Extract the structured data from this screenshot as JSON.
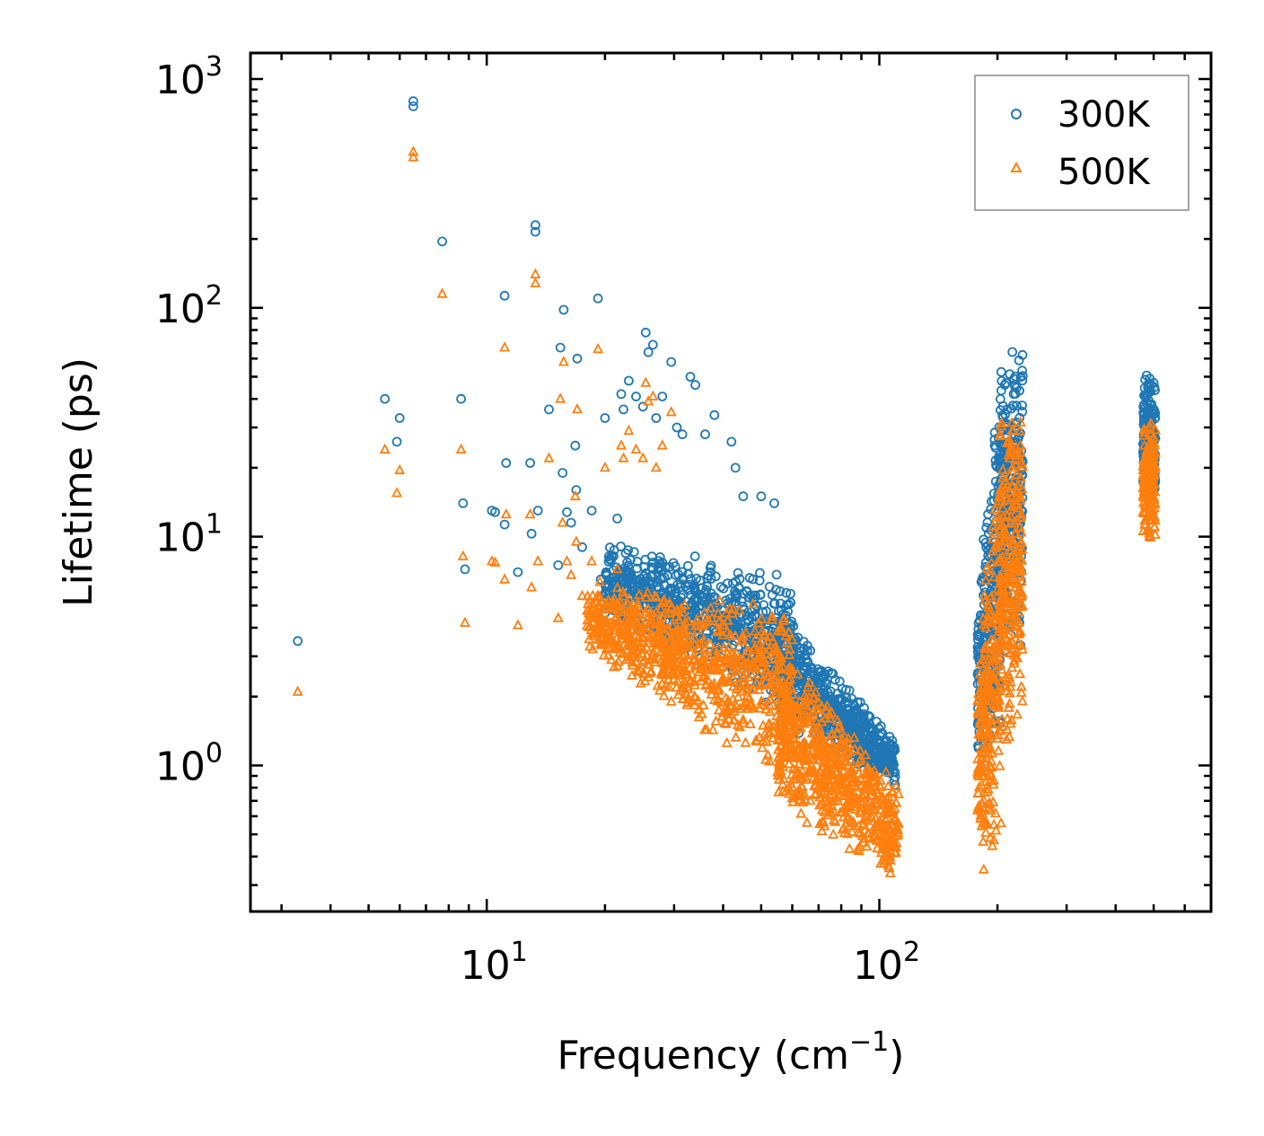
{
  "chart_data": {
    "type": "scatter",
    "xscale": "log",
    "yscale": "log",
    "xlabel": "Frequency (cm",
    "xlabel_sup": "−1",
    "xlabel_end": ")",
    "ylabel": "Lifetime (ps)",
    "xlim": [
      2.5,
      700
    ],
    "ylim": [
      0.23,
      1300
    ],
    "x_ticks": [
      {
        "value": 10,
        "base": "10",
        "exp": "1"
      },
      {
        "value": 100,
        "base": "10",
        "exp": "2"
      }
    ],
    "y_ticks": [
      {
        "value": 1,
        "base": "10",
        "exp": "0"
      },
      {
        "value": 10,
        "base": "10",
        "exp": "1"
      },
      {
        "value": 100,
        "base": "10",
        "exp": "2"
      },
      {
        "value": 1000,
        "base": "10",
        "exp": "3"
      }
    ],
    "legend_position": "top-right",
    "series": [
      {
        "name": "300K",
        "color": "#1f77b4",
        "marker": "circle",
        "points": [
          [
            3.3,
            3.5
          ],
          [
            5.5,
            40
          ],
          [
            5.9,
            26
          ],
          [
            6.0,
            33
          ],
          [
            6.5,
            800
          ],
          [
            6.5,
            760
          ],
          [
            7.7,
            195
          ],
          [
            8.6,
            40
          ],
          [
            8.7,
            14
          ],
          [
            8.8,
            7.2
          ],
          [
            10.3,
            13
          ],
          [
            10.5,
            12.8
          ],
          [
            11.1,
            113
          ],
          [
            11.2,
            21
          ],
          [
            11.1,
            11.3
          ],
          [
            12.0,
            7.0
          ],
          [
            12.9,
            21
          ],
          [
            13.3,
            230
          ],
          [
            13.3,
            215
          ],
          [
            13.5,
            13
          ],
          [
            13.0,
            10.3
          ],
          [
            14.4,
            36
          ],
          [
            15.2,
            7.5
          ],
          [
            15.4,
            67
          ],
          [
            15.6,
            19
          ],
          [
            15.7,
            98
          ],
          [
            16.0,
            12.8
          ],
          [
            16.4,
            11.5
          ],
          [
            16.8,
            25
          ],
          [
            16.9,
            16
          ],
          [
            17.0,
            60
          ],
          [
            17.5,
            9.0
          ],
          [
            18.5,
            13
          ],
          [
            19.2,
            110
          ],
          [
            19.5,
            6.5
          ],
          [
            20.0,
            33
          ],
          [
            21.5,
            12
          ],
          [
            22.0,
            42
          ],
          [
            22.3,
            36
          ],
          [
            23.0,
            48
          ],
          [
            24.0,
            41
          ],
          [
            25.0,
            37
          ],
          [
            25.4,
            78
          ],
          [
            25.8,
            64
          ],
          [
            26.5,
            69
          ],
          [
            27.0,
            33
          ],
          [
            28.0,
            41
          ],
          [
            29.5,
            58
          ],
          [
            30.5,
            30
          ],
          [
            31.5,
            28
          ],
          [
            33.0,
            50
          ],
          [
            34.0,
            46
          ],
          [
            36.0,
            28
          ],
          [
            38.0,
            34
          ],
          [
            42.0,
            26
          ],
          [
            43.0,
            20
          ],
          [
            45.0,
            15
          ],
          [
            50.0,
            15
          ],
          [
            54.0,
            14
          ]
        ],
        "clusters": [
          {
            "x": [
              20,
              60
            ],
            "y_low": [
              4.5,
              1.5
            ],
            "y_high": [
              10,
              7
            ],
            "n": 700
          },
          {
            "x": [
              55,
              110
            ],
            "y_low": [
              1.5,
              0.8
            ],
            "y_high": [
              5,
              1.3
            ],
            "n": 600
          },
          {
            "x": [
              178,
              205
            ],
            "y_low": [
              1.0,
              1.0
            ],
            "y_high": [
              6,
              85
            ],
            "n": 260
          },
          {
            "x": [
              202,
              232
            ],
            "y_low": [
              2,
              3
            ],
            "y_high": [
              60,
              95
            ],
            "n": 260
          },
          {
            "x": [
              470,
              505
            ],
            "y_low": [
              14,
              14
            ],
            "y_high": [
              52,
              52
            ],
            "n": 180
          }
        ]
      },
      {
        "name": "500K",
        "color": "#ff7f0e",
        "marker": "triangle",
        "points": [
          [
            3.3,
            2.1
          ],
          [
            5.5,
            24
          ],
          [
            5.9,
            15.5
          ],
          [
            6.0,
            19.5
          ],
          [
            6.5,
            480
          ],
          [
            6.5,
            455
          ],
          [
            7.7,
            115
          ],
          [
            8.6,
            24
          ],
          [
            8.7,
            8.2
          ],
          [
            8.8,
            4.2
          ],
          [
            10.3,
            7.8
          ],
          [
            10.5,
            7.7
          ],
          [
            11.1,
            67
          ],
          [
            11.2,
            12.5
          ],
          [
            11.1,
            6.5
          ],
          [
            12.0,
            4.1
          ],
          [
            12.9,
            12.5
          ],
          [
            13.3,
            140
          ],
          [
            13.3,
            128
          ],
          [
            13.5,
            7.8
          ],
          [
            13.0,
            6.0
          ],
          [
            14.4,
            22
          ],
          [
            15.2,
            4.4
          ],
          [
            15.4,
            40
          ],
          [
            15.6,
            11.5
          ],
          [
            15.7,
            58
          ],
          [
            16.0,
            7.8
          ],
          [
            16.4,
            6.8
          ],
          [
            16.8,
            15
          ],
          [
            16.9,
            9.5
          ],
          [
            17.0,
            36
          ],
          [
            17.5,
            5.5
          ],
          [
            18.5,
            7.8
          ],
          [
            19.2,
            66
          ],
          [
            19.5,
            4.0
          ],
          [
            20.0,
            20
          ],
          [
            21.5,
            7.2
          ],
          [
            22.0,
            25
          ],
          [
            22.3,
            22
          ],
          [
            23.0,
            29
          ],
          [
            24.0,
            24
          ],
          [
            25.0,
            22
          ],
          [
            25.4,
            47
          ],
          [
            25.8,
            39
          ],
          [
            26.5,
            41
          ],
          [
            27.0,
            20
          ],
          [
            28.0,
            25
          ],
          [
            29.5,
            35
          ]
        ],
        "clusters": [
          {
            "x": [
              18,
              60
            ],
            "y_low": [
              3.0,
              0.8
            ],
            "y_high": [
              6.5,
              5
            ],
            "n": 800
          },
          {
            "x": [
              55,
              112
            ],
            "y_low": [
              0.6,
              0.3
            ],
            "y_high": [
              3.5,
              0.9
            ],
            "n": 650
          },
          {
            "x": [
              178,
              205
            ],
            "y_low": [
              0.3,
              0.3
            ],
            "y_high": [
              3.5,
              50
            ],
            "n": 260
          },
          {
            "x": [
              202,
              232
            ],
            "y_low": [
              1,
              1.5
            ],
            "y_high": [
              35,
              60
            ],
            "n": 260
          },
          {
            "x": [
              470,
              505
            ],
            "y_low": [
              9.5,
              9.5
            ],
            "y_high": [
              32,
              32
            ],
            "n": 180
          }
        ]
      }
    ]
  }
}
